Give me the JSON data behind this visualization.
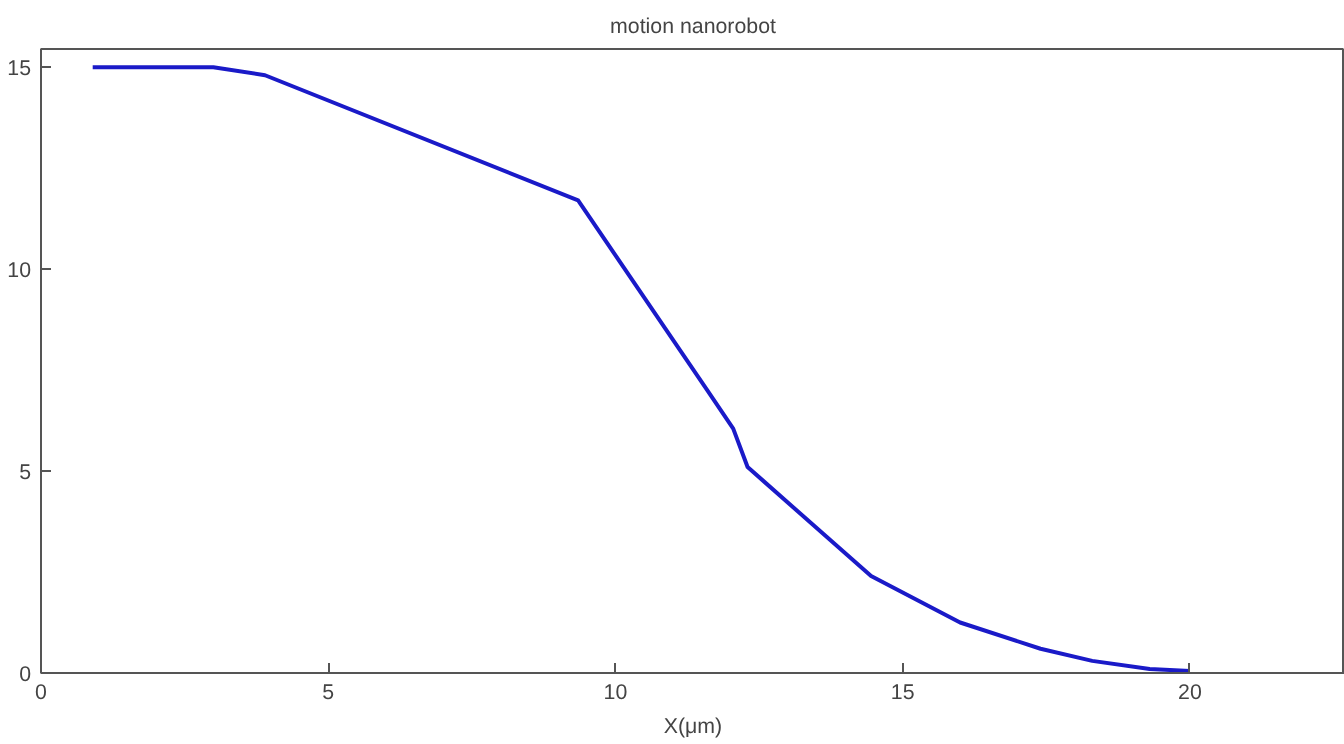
{
  "chart_data": {
    "type": "line",
    "title": "motion nanorobot",
    "xlabel": "X(μm)",
    "x": [
      0.9,
      2.35,
      3.0,
      3.9,
      9.35,
      11.6,
      12.05,
      12.3,
      14.45,
      16.0,
      17.4,
      18.3,
      19.3,
      20.0
    ],
    "series": [
      {
        "color": "#1a1ac8",
        "values": [
          15.0,
          15.0,
          15.0,
          14.8,
          11.7,
          7.0,
          6.05,
          5.1,
          2.4,
          1.25,
          0.6,
          0.3,
          0.1,
          0.05
        ]
      }
    ],
    "xlim": [
      0,
      22.7
    ],
    "ylim": [
      0,
      15.45
    ],
    "xticks": [
      0,
      5,
      10,
      15,
      20
    ],
    "yticks": [
      0,
      5,
      10,
      15
    ],
    "grid": false,
    "marker": "none",
    "line_style": "solid"
  }
}
